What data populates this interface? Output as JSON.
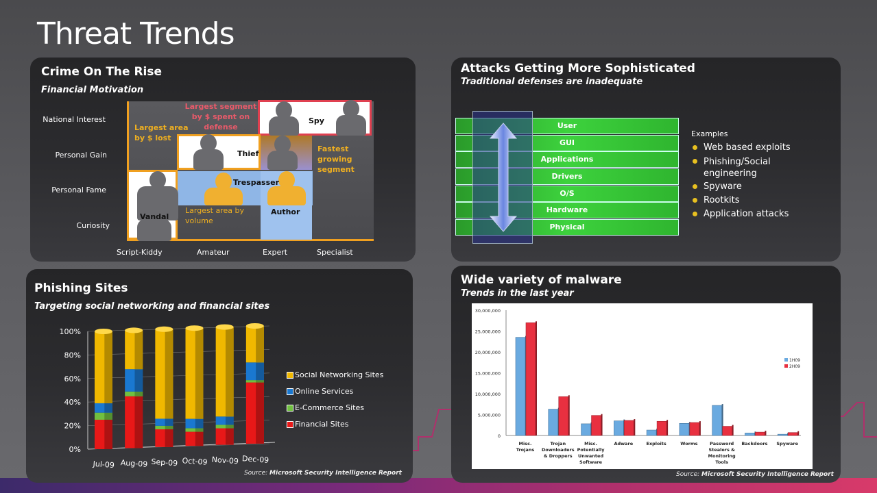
{
  "page": {
    "title": "Threat Trends"
  },
  "colors": {
    "panel_bg": "#2a2a2d",
    "accent_orange": "#f0a020",
    "accent_red": "#e04050",
    "layer_green": "#33c433"
  },
  "crime": {
    "title": "Crime On The Rise",
    "subtitle": "Financial Motivation",
    "y_labels": [
      "National Interest",
      "Personal Gain",
      "Personal Fame",
      "Curiosity"
    ],
    "x_labels": [
      "Script-Kiddy",
      "Amateur",
      "Expert",
      "Specialist"
    ],
    "cells": {
      "spy": "Spy",
      "thief": "Thief",
      "trespasser": "Trespasser",
      "author": "Author",
      "vandal": "Vandal"
    },
    "notes": {
      "largest_defense": "Largest segment by $ spent on defense",
      "largest_lost": "Largest area by $ lost",
      "fastest": "Fastest growing segment",
      "largest_volume": "Largest area by volume"
    }
  },
  "attacks": {
    "title": "Attacks Getting More Sophisticated",
    "subtitle": "Traditional defenses are inadequate",
    "layers": [
      "User",
      "GUI",
      "Applications",
      "Drivers",
      "O/S",
      "Hardware",
      "Physical"
    ],
    "examples_label": "Examples",
    "examples": [
      "Web based exploits",
      "Phishing/Social engineering",
      "Spyware",
      "Rootkits",
      "Application attacks"
    ]
  },
  "phishing": {
    "title": "Phishing Sites",
    "subtitle": "Targeting social networking and financial sites",
    "source_prefix": "Source:",
    "source": "Microsoft Security Intelligence Report"
  },
  "malware": {
    "title": "Wide variety of malware",
    "subtitle": "Trends in the last year",
    "source_prefix": "Source:",
    "source": "Microsoft Security Intelligence Report"
  },
  "chart_data": [
    {
      "type": "bar",
      "stacked": true,
      "categories": [
        "Jul-09",
        "Aug-09",
        "Sep-09",
        "Oct-09",
        "Nov-09",
        "Dec-09"
      ],
      "series": [
        {
          "name": "Financial Sites",
          "color": "#e81818",
          "values": [
            25,
            44,
            15,
            12,
            14,
            52
          ]
        },
        {
          "name": "E-Commerce Sites",
          "color": "#70c040",
          "values": [
            6,
            4,
            3,
            3,
            3,
            2
          ]
        },
        {
          "name": "Online Services",
          "color": "#1a78d0",
          "values": [
            8,
            19,
            6,
            8,
            7,
            15
          ]
        },
        {
          "name": "Social Networking Sites",
          "color": "#f0b800",
          "values": [
            61,
            33,
            76,
            77,
            76,
            31
          ]
        }
      ],
      "yticks": [
        "100%",
        "80%",
        "60%",
        "40%",
        "20%",
        "0%"
      ],
      "ylim": [
        0,
        100
      ],
      "legend": "right"
    },
    {
      "type": "bar",
      "categories": [
        "Misc. Trojans",
        "Trojan Downloaders & Droppers",
        "Misc. Potentially Unwanted Software",
        "Adware",
        "Exploits",
        "Worms",
        "Password Stealers & Monitoring Tools",
        "Backdoors",
        "Spyware"
      ],
      "series": [
        {
          "name": "1H09",
          "color": "#6aaae0",
          "values": [
            23500000,
            6300000,
            2800000,
            3500000,
            1300000,
            2900000,
            7200000,
            600000,
            300000
          ]
        },
        {
          "name": "2H09",
          "color": "#e83040",
          "values": [
            27000000,
            9300000,
            4800000,
            3600000,
            3400000,
            3100000,
            2200000,
            800000,
            700000
          ]
        }
      ],
      "yticks": [
        "30,000,000",
        "25,000,000",
        "20,000,000",
        "15,000,000",
        "10,000,000",
        "5,000,000",
        "0"
      ],
      "ylim": [
        0,
        30000000
      ],
      "legend": "right"
    }
  ]
}
